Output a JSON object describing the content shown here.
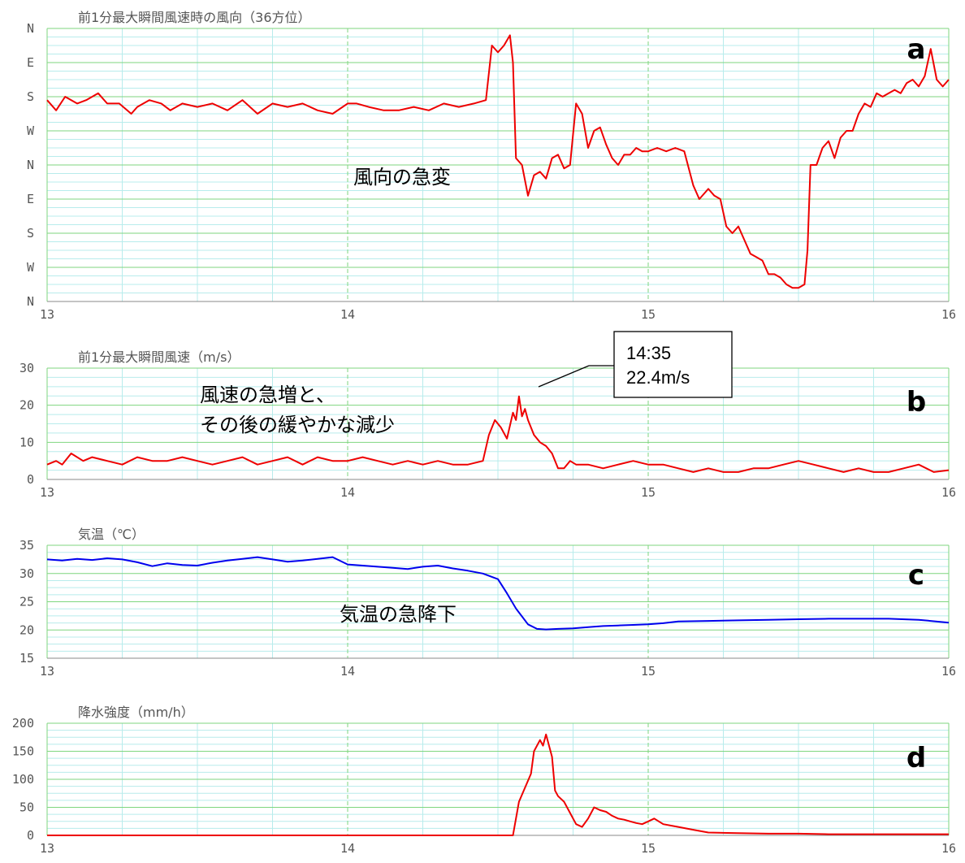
{
  "chart_data": [
    {
      "type": "line",
      "letter": "a",
      "title": "前1分最大瞬間風速時の風向（36方位）",
      "x_ticks": [
        "13",
        "14",
        "15",
        "16"
      ],
      "y_ticks": [
        "N",
        "W",
        "S",
        "E",
        "N",
        "W",
        "S",
        "E",
        "N"
      ],
      "xlim": [
        13,
        16
      ],
      "ylim": [
        0,
        8
      ],
      "annotation": "風向の急変",
      "series": [
        {
          "color": "#ee0000",
          "x": [
            13.0,
            13.03,
            13.06,
            13.1,
            13.13,
            13.17,
            13.2,
            13.24,
            13.28,
            13.3,
            13.34,
            13.38,
            13.41,
            13.45,
            13.5,
            13.55,
            13.6,
            13.65,
            13.7,
            13.75,
            13.8,
            13.85,
            13.9,
            13.95,
            14.0,
            14.03,
            14.07,
            14.12,
            14.17,
            14.22,
            14.27,
            14.32,
            14.37,
            14.42,
            14.46,
            14.48,
            14.5,
            14.52,
            14.54,
            14.55,
            14.56,
            14.58,
            14.6,
            14.62,
            14.64,
            14.66,
            14.68,
            14.7,
            14.72,
            14.74,
            14.76,
            14.78,
            14.8,
            14.82,
            14.84,
            14.86,
            14.88,
            14.9,
            14.92,
            14.94,
            14.96,
            14.98,
            15.0,
            15.03,
            15.06,
            15.09,
            15.12,
            15.15,
            15.17,
            15.19,
            15.2,
            15.22,
            15.24,
            15.26,
            15.28,
            15.3,
            15.32,
            15.34,
            15.36,
            15.38,
            15.4,
            15.42,
            15.44,
            15.46,
            15.48,
            15.5,
            15.52,
            15.53,
            15.54,
            15.56,
            15.58,
            15.6,
            15.62,
            15.64,
            15.66,
            15.68,
            15.7,
            15.72,
            15.74,
            15.76,
            15.78,
            15.8,
            15.82,
            15.84,
            15.86,
            15.88,
            15.9,
            15.92,
            15.94,
            15.96,
            15.98,
            16.0
          ],
          "y": [
            5.9,
            5.6,
            6.0,
            5.8,
            5.9,
            6.1,
            5.8,
            5.8,
            5.5,
            5.7,
            5.9,
            5.8,
            5.6,
            5.8,
            5.7,
            5.8,
            5.6,
            5.9,
            5.5,
            5.8,
            5.7,
            5.8,
            5.6,
            5.5,
            5.8,
            5.8,
            5.7,
            5.6,
            5.6,
            5.7,
            5.6,
            5.8,
            5.7,
            5.8,
            5.9,
            7.5,
            7.3,
            7.5,
            7.8,
            7.0,
            4.2,
            4.0,
            3.1,
            3.7,
            3.8,
            3.6,
            4.2,
            4.3,
            3.9,
            4.0,
            5.8,
            5.5,
            4.5,
            5.0,
            5.1,
            4.6,
            4.2,
            4.0,
            4.3,
            4.3,
            4.5,
            4.4,
            4.4,
            4.5,
            4.4,
            4.5,
            4.4,
            3.4,
            3.0,
            3.2,
            3.3,
            3.1,
            3.0,
            2.2,
            2.0,
            2.2,
            1.8,
            1.4,
            1.3,
            1.2,
            0.8,
            0.8,
            0.7,
            0.5,
            0.4,
            0.4,
            0.5,
            1.5,
            4.0,
            4.0,
            4.5,
            4.7,
            4.2,
            4.8,
            5.0,
            5.0,
            5.5,
            5.8,
            5.7,
            6.1,
            6.0,
            6.1,
            6.2,
            6.1,
            6.4,
            6.5,
            6.3,
            6.6,
            7.4,
            6.5,
            6.3,
            6.5
          ]
        }
      ]
    },
    {
      "type": "line",
      "letter": "b",
      "title": "前1分最大瞬間風速（m/s）",
      "x_ticks": [
        "13",
        "14",
        "15",
        "16"
      ],
      "y_ticks": [
        "0",
        "10",
        "20",
        "30"
      ],
      "xlim": [
        13,
        16
      ],
      "ylim": [
        0,
        30
      ],
      "annotation_lines": [
        "風速の急増と、",
        "その後の緩やかな減少"
      ],
      "callout_lines": [
        "14:35",
        "22.4m/s"
      ],
      "series": [
        {
          "color": "#ee0000",
          "x": [
            13.0,
            13.03,
            13.05,
            13.08,
            13.12,
            13.15,
            13.2,
            13.25,
            13.3,
            13.35,
            13.4,
            13.45,
            13.5,
            13.55,
            13.6,
            13.65,
            13.7,
            13.75,
            13.8,
            13.85,
            13.9,
            13.95,
            14.0,
            14.05,
            14.1,
            14.15,
            14.2,
            14.25,
            14.3,
            14.35,
            14.4,
            14.45,
            14.47,
            14.49,
            14.51,
            14.53,
            14.55,
            14.56,
            14.57,
            14.58,
            14.59,
            14.6,
            14.62,
            14.64,
            14.66,
            14.68,
            14.7,
            14.72,
            14.74,
            14.76,
            14.8,
            14.85,
            14.9,
            14.95,
            15.0,
            15.05,
            15.1,
            15.15,
            15.2,
            15.25,
            15.3,
            15.35,
            15.4,
            15.45,
            15.5,
            15.55,
            15.6,
            15.65,
            15.7,
            15.75,
            15.8,
            15.85,
            15.9,
            15.95,
            16.0
          ],
          "y": [
            4,
            5,
            4,
            7,
            5,
            6,
            5,
            4,
            6,
            5,
            5,
            6,
            5,
            4,
            5,
            6,
            4,
            5,
            6,
            4,
            6,
            5,
            5,
            6,
            5,
            4,
            5,
            4,
            5,
            4,
            4,
            5,
            12,
            16,
            14,
            11,
            18,
            16,
            22.4,
            17,
            19,
            16,
            12,
            10,
            9,
            7,
            3,
            3,
            5,
            4,
            4,
            3,
            4,
            5,
            4,
            4,
            3,
            2,
            3,
            2,
            2,
            3,
            3,
            4,
            5,
            4,
            3,
            2,
            3,
            2,
            2,
            3,
            4,
            2,
            2.5
          ]
        }
      ]
    },
    {
      "type": "line",
      "letter": "c",
      "title": "気温（℃）",
      "x_ticks": [
        "13",
        "14",
        "15",
        "16"
      ],
      "y_ticks": [
        "15",
        "20",
        "25",
        "30",
        "35"
      ],
      "xlim": [
        13,
        16
      ],
      "ylim": [
        15,
        35
      ],
      "annotation": "気温の急降下",
      "series": [
        {
          "color": "#0000ee",
          "x": [
            13.0,
            13.05,
            13.1,
            13.15,
            13.2,
            13.25,
            13.3,
            13.35,
            13.4,
            13.45,
            13.5,
            13.55,
            13.6,
            13.65,
            13.7,
            13.75,
            13.8,
            13.85,
            13.9,
            13.95,
            14.0,
            14.05,
            14.1,
            14.15,
            14.2,
            14.25,
            14.3,
            14.35,
            14.4,
            14.45,
            14.5,
            14.53,
            14.56,
            14.6,
            14.63,
            14.66,
            14.7,
            14.75,
            14.8,
            14.85,
            14.9,
            14.95,
            15.0,
            15.05,
            15.1,
            15.2,
            15.3,
            15.4,
            15.5,
            15.6,
            15.7,
            15.8,
            15.9,
            16.0
          ],
          "y": [
            32.5,
            32.3,
            32.6,
            32.4,
            32.7,
            32.5,
            32.0,
            31.3,
            31.8,
            31.5,
            31.4,
            31.9,
            32.3,
            32.6,
            32.9,
            32.5,
            32.1,
            32.3,
            32.6,
            32.9,
            31.6,
            31.4,
            31.2,
            31.0,
            30.8,
            31.2,
            31.4,
            30.9,
            30.5,
            30.0,
            29.0,
            26.5,
            23.8,
            21.0,
            20.2,
            20.1,
            20.2,
            20.3,
            20.5,
            20.7,
            20.8,
            20.9,
            21.0,
            21.2,
            21.5,
            21.6,
            21.7,
            21.8,
            21.9,
            22.0,
            22.0,
            22.0,
            21.8,
            21.3
          ]
        }
      ]
    },
    {
      "type": "line",
      "letter": "d",
      "title": "降水強度（mm/h）",
      "x_ticks": [
        "13",
        "14",
        "15",
        "16"
      ],
      "y_ticks": [
        "0",
        "50",
        "100",
        "150",
        "200"
      ],
      "xlim": [
        13,
        16
      ],
      "ylim": [
        0,
        200
      ],
      "series": [
        {
          "color": "#ee0000",
          "x": [
            13.0,
            14.0,
            14.5,
            14.55,
            14.57,
            14.59,
            14.61,
            14.62,
            14.64,
            14.65,
            14.66,
            14.68,
            14.69,
            14.7,
            14.72,
            14.74,
            14.76,
            14.78,
            14.8,
            14.82,
            14.84,
            14.86,
            14.88,
            14.9,
            14.92,
            14.94,
            14.96,
            14.98,
            15.0,
            15.02,
            15.05,
            15.1,
            15.15,
            15.2,
            15.3,
            15.4,
            15.5,
            15.6,
            15.7,
            15.8,
            15.9,
            16.0
          ],
          "y": [
            0,
            0,
            0,
            0,
            60,
            85,
            110,
            150,
            170,
            160,
            180,
            140,
            80,
            70,
            60,
            40,
            20,
            15,
            30,
            50,
            45,
            42,
            35,
            30,
            28,
            25,
            22,
            20,
            25,
            30,
            20,
            15,
            10,
            5,
            4,
            3,
            3,
            2,
            2,
            2,
            2,
            2
          ]
        }
      ]
    }
  ]
}
